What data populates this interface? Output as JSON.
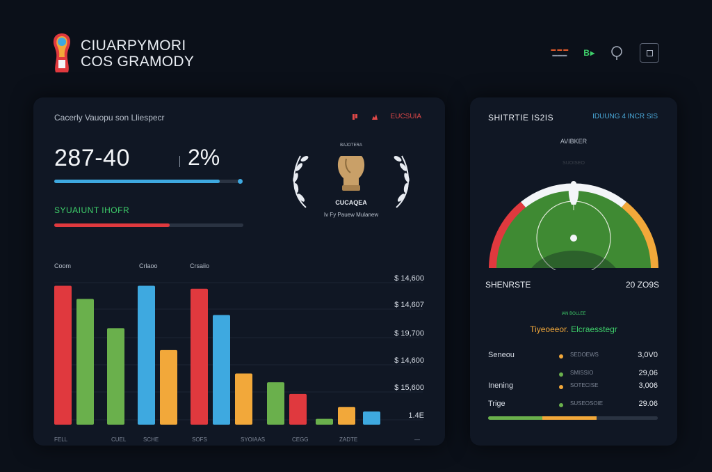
{
  "header": {
    "brand_line1": "CIUARPYMORI",
    "brand_line2": "COS GRAMODY",
    "flag_top": "▬ ▬ ▬",
    "flag_bottom": "▬▬▬",
    "action_label": "B▸",
    "accent": "#3ecf6a"
  },
  "left_panel": {
    "title": "Cacerly Vauopu son Lliespecr",
    "tag_icons": [
      "flag-icon",
      "chart-icon"
    ],
    "tag_text": "EUCSUIA",
    "score": "287-40",
    "percent": "2%",
    "progress_blue": 0.88,
    "progress_red": 0.61,
    "sub_label": "SYUAIUNT IHOFR",
    "trophy_line1": "BAJOTERA",
    "trophy_line2": "CUCAQEA",
    "trophy_line3": "Iv Fy  Pauew   Mulanew",
    "trophy_color": "#c9a068"
  },
  "chart_data": {
    "type": "bar",
    "group_headers": [
      "Coom",
      "Crlaoo",
      "Crsaiio"
    ],
    "series_colors": [
      "#e0393e",
      "#6ab04c",
      "#3ea9e0",
      "#f2a83a"
    ],
    "bars": [
      {
        "value": 0.95,
        "color": "#e0393e"
      },
      {
        "value": 0.86,
        "color": "#6ab04c"
      },
      {
        "value": 0.66,
        "color": "#6ab04c"
      },
      {
        "value": 0.95,
        "color": "#3ea9e0"
      },
      {
        "value": 0.51,
        "color": "#f2a83a"
      },
      {
        "value": 0.93,
        "color": "#e0393e"
      },
      {
        "value": 0.75,
        "color": "#3ea9e0"
      },
      {
        "value": 0.35,
        "color": "#f2a83a"
      },
      {
        "value": 0.29,
        "color": "#6ab04c"
      },
      {
        "value": 0.21,
        "color": "#e0393e"
      },
      {
        "value": 0.04,
        "color": "#6ab04c"
      },
      {
        "value": 0.12,
        "color": "#f2a83a"
      },
      {
        "value": 0.09,
        "color": "#3ea9e0"
      }
    ],
    "x_labels": [
      "FELL",
      "CUEL",
      "SCHE",
      "SOFS",
      "SYOIAAS",
      "CEGG",
      "ZADTE",
      "—"
    ],
    "y_labels": [
      "$ 14,600",
      "$ 14,607",
      "$ 19,700",
      "$ 14,600",
      "$ 15,600",
      "1.4E"
    ]
  },
  "right_panel": {
    "title": "SHITRTIE IS2IS",
    "tag": "IDUUNG   4 INCR SIS",
    "gauge_top": "AVIBKER",
    "gauge_white": "SUOISEO",
    "gauge_left": "SHENRSTE",
    "gauge_right": "20 ZO9S",
    "gauge_colors": {
      "red": "#e0393e",
      "white": "#f3f5f8",
      "orange": "#f2a83a",
      "field": "#3f8a33"
    },
    "mid_small": "IAN BOLLEE",
    "mid_label_a": "Tiyeoeeor.",
    "mid_label_b": "Elcraesstegr",
    "stats": [
      {
        "name": "Seneou",
        "dot": "#f2a83a",
        "mid": "SEDOEWS",
        "value": "3,0V0"
      },
      {
        "name": "",
        "dot": "#6ab04c",
        "mid": "SMISSIO",
        "value": "29,06"
      },
      {
        "name": "Inening",
        "dot": "#f2a83a",
        "mid": "SOTECISE",
        "value": "3,006"
      },
      {
        "name": "Trige",
        "dot": "#6ab04c",
        "mid": "SUSEOSOIE",
        "value": "29.06"
      }
    ],
    "progress_segments": [
      {
        "fraction": 0.32,
        "color": "#6ab04c"
      },
      {
        "fraction": 0.32,
        "color": "#f2a83a"
      },
      {
        "fraction": 0.36,
        "color": "#2a3342"
      }
    ]
  }
}
